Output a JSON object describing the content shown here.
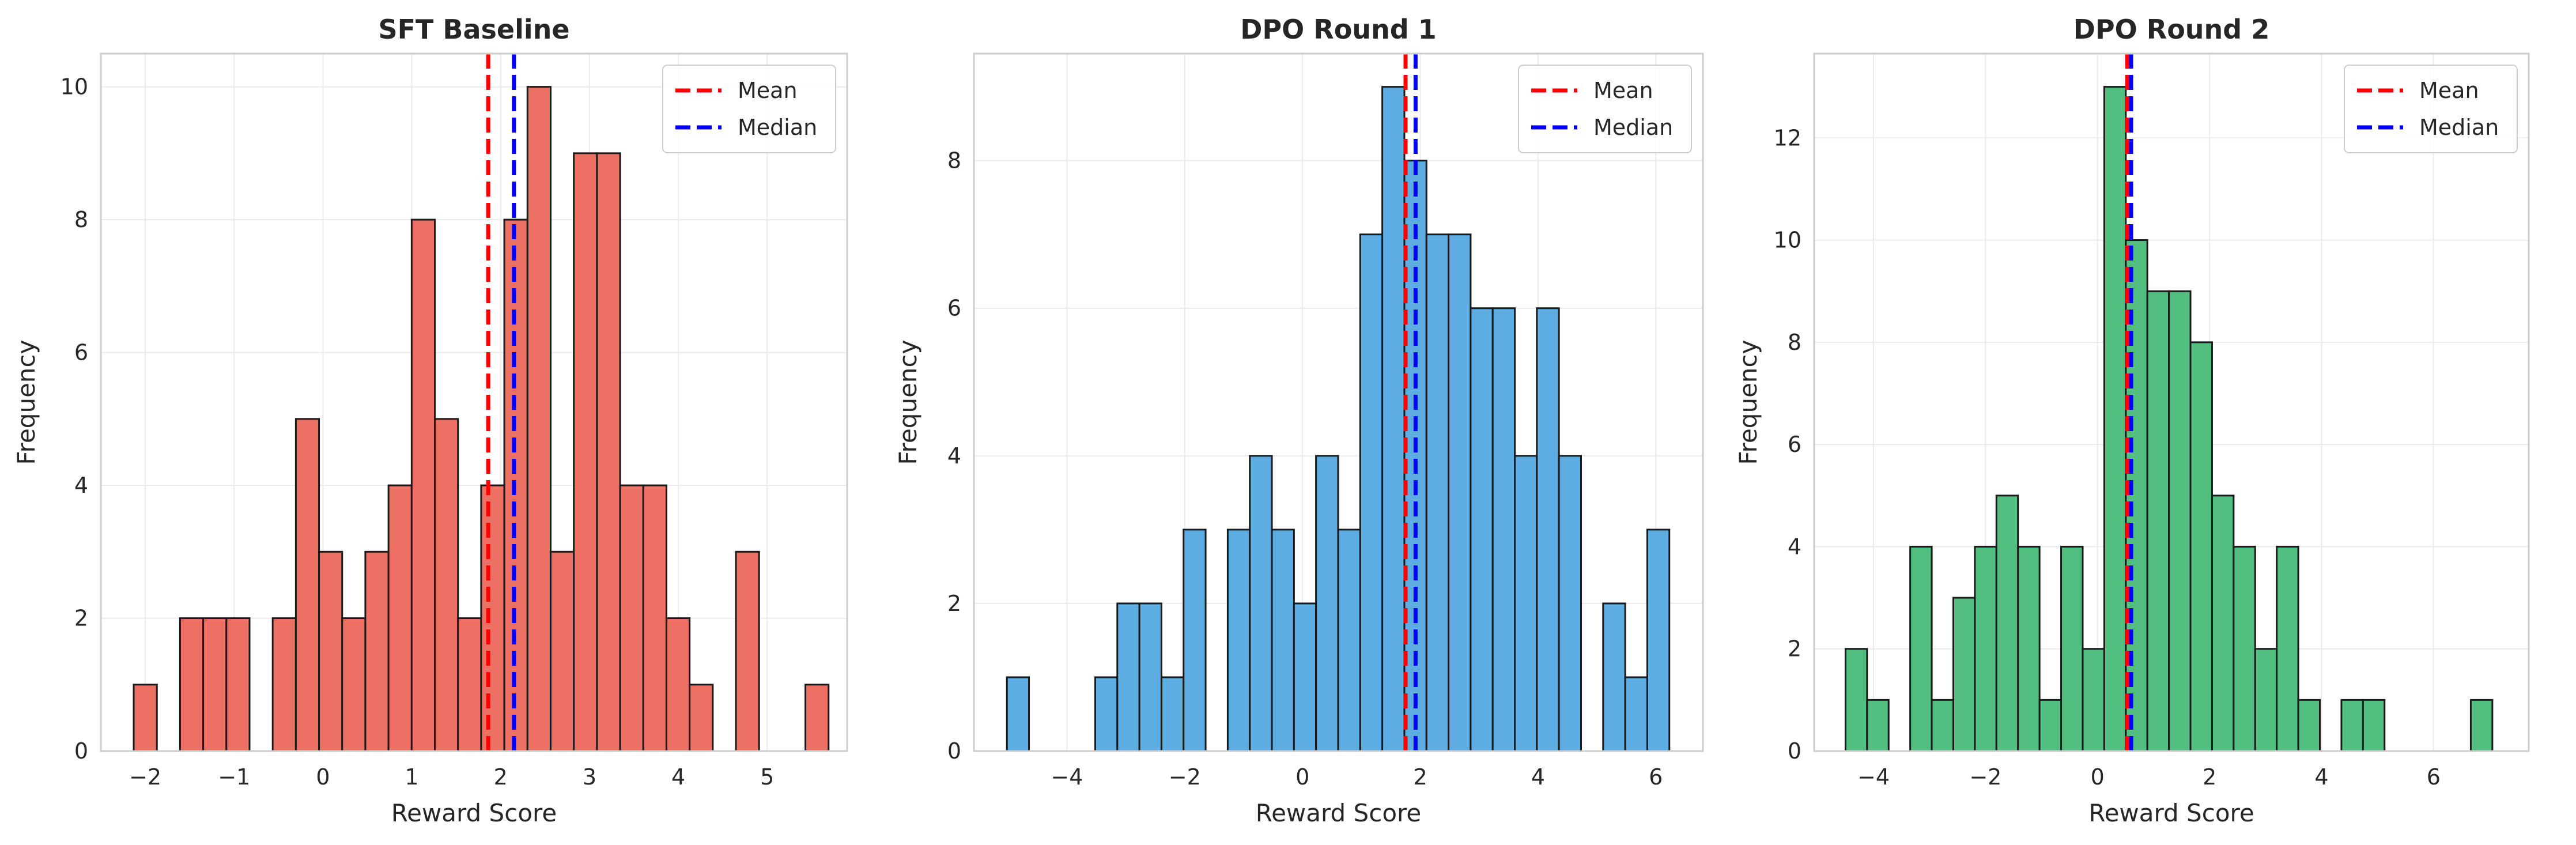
{
  "colors": {
    "panel_colors": [
      "#ec7063",
      "#5dade2",
      "#52be80"
    ],
    "bar_edge": "#1a1a1a",
    "mean_line": "#ff0000",
    "median_line": "#0000ff",
    "grid": "#ebebeb",
    "spine": "#cccccc"
  },
  "chart_data": [
    {
      "type": "bar",
      "subtype": "histogram",
      "title": "SFT Baseline",
      "xlabel": "Reward Score",
      "ylabel": "Frequency",
      "xlim": [
        -2.5,
        5.9
      ],
      "ylim": [
        0,
        10.5
      ],
      "xticks": [
        -2,
        -1,
        0,
        1,
        2,
        3,
        4,
        5
      ],
      "yticks": [
        0,
        2,
        4,
        6,
        8,
        10
      ],
      "bin_start": -2.13,
      "bin_width": 0.2607,
      "counts": [
        1,
        0,
        2,
        2,
        2,
        0,
        2,
        5,
        3,
        2,
        3,
        4,
        8,
        5,
        2,
        4,
        8,
        10,
        3,
        9,
        9,
        4,
        4,
        2,
        1,
        0,
        3,
        0,
        0,
        1
      ],
      "mean": 1.86,
      "median": 2.15,
      "legend": [
        "Mean",
        "Median"
      ],
      "legend_position": "upper right",
      "grid": true
    },
    {
      "type": "bar",
      "subtype": "histogram",
      "title": "DPO Round 1",
      "xlabel": "Reward Score",
      "ylabel": "Frequency",
      "xlim": [
        -5.58,
        6.8
      ],
      "ylim": [
        0,
        9.45
      ],
      "xticks": [
        -4,
        -2,
        0,
        2,
        4,
        6
      ],
      "yticks": [
        0,
        2,
        4,
        6,
        8
      ],
      "bin_start": -5.02,
      "bin_width": 0.375,
      "counts": [
        1,
        0,
        0,
        0,
        1,
        2,
        2,
        1,
        3,
        0,
        3,
        4,
        3,
        2,
        4,
        3,
        7,
        9,
        8,
        7,
        7,
        6,
        6,
        4,
        6,
        4,
        0,
        2,
        1,
        3
      ],
      "mean": 1.75,
      "median": 1.92,
      "legend": [
        "Mean",
        "Median"
      ],
      "legend_position": "upper right",
      "grid": true
    },
    {
      "type": "bar",
      "subtype": "histogram",
      "title": "DPO Round 2",
      "xlabel": "Reward Score",
      "ylabel": "Frequency",
      "xlim": [
        -5.06,
        7.7
      ],
      "ylim": [
        0,
        13.65
      ],
      "xticks": [
        -4,
        -2,
        0,
        2,
        4,
        6
      ],
      "yticks": [
        0,
        2,
        4,
        6,
        8,
        10,
        12
      ],
      "bin_start": -4.5,
      "bin_width": 0.385,
      "counts": [
        2,
        1,
        0,
        4,
        1,
        3,
        4,
        5,
        4,
        1,
        4,
        2,
        13,
        10,
        9,
        9,
        8,
        5,
        4,
        2,
        4,
        1,
        0,
        1,
        1,
        0,
        0,
        0,
        0,
        1
      ],
      "mean": 0.53,
      "median": 0.6,
      "legend": [
        "Mean",
        "Median"
      ],
      "legend_position": "upper right",
      "grid": true
    }
  ]
}
